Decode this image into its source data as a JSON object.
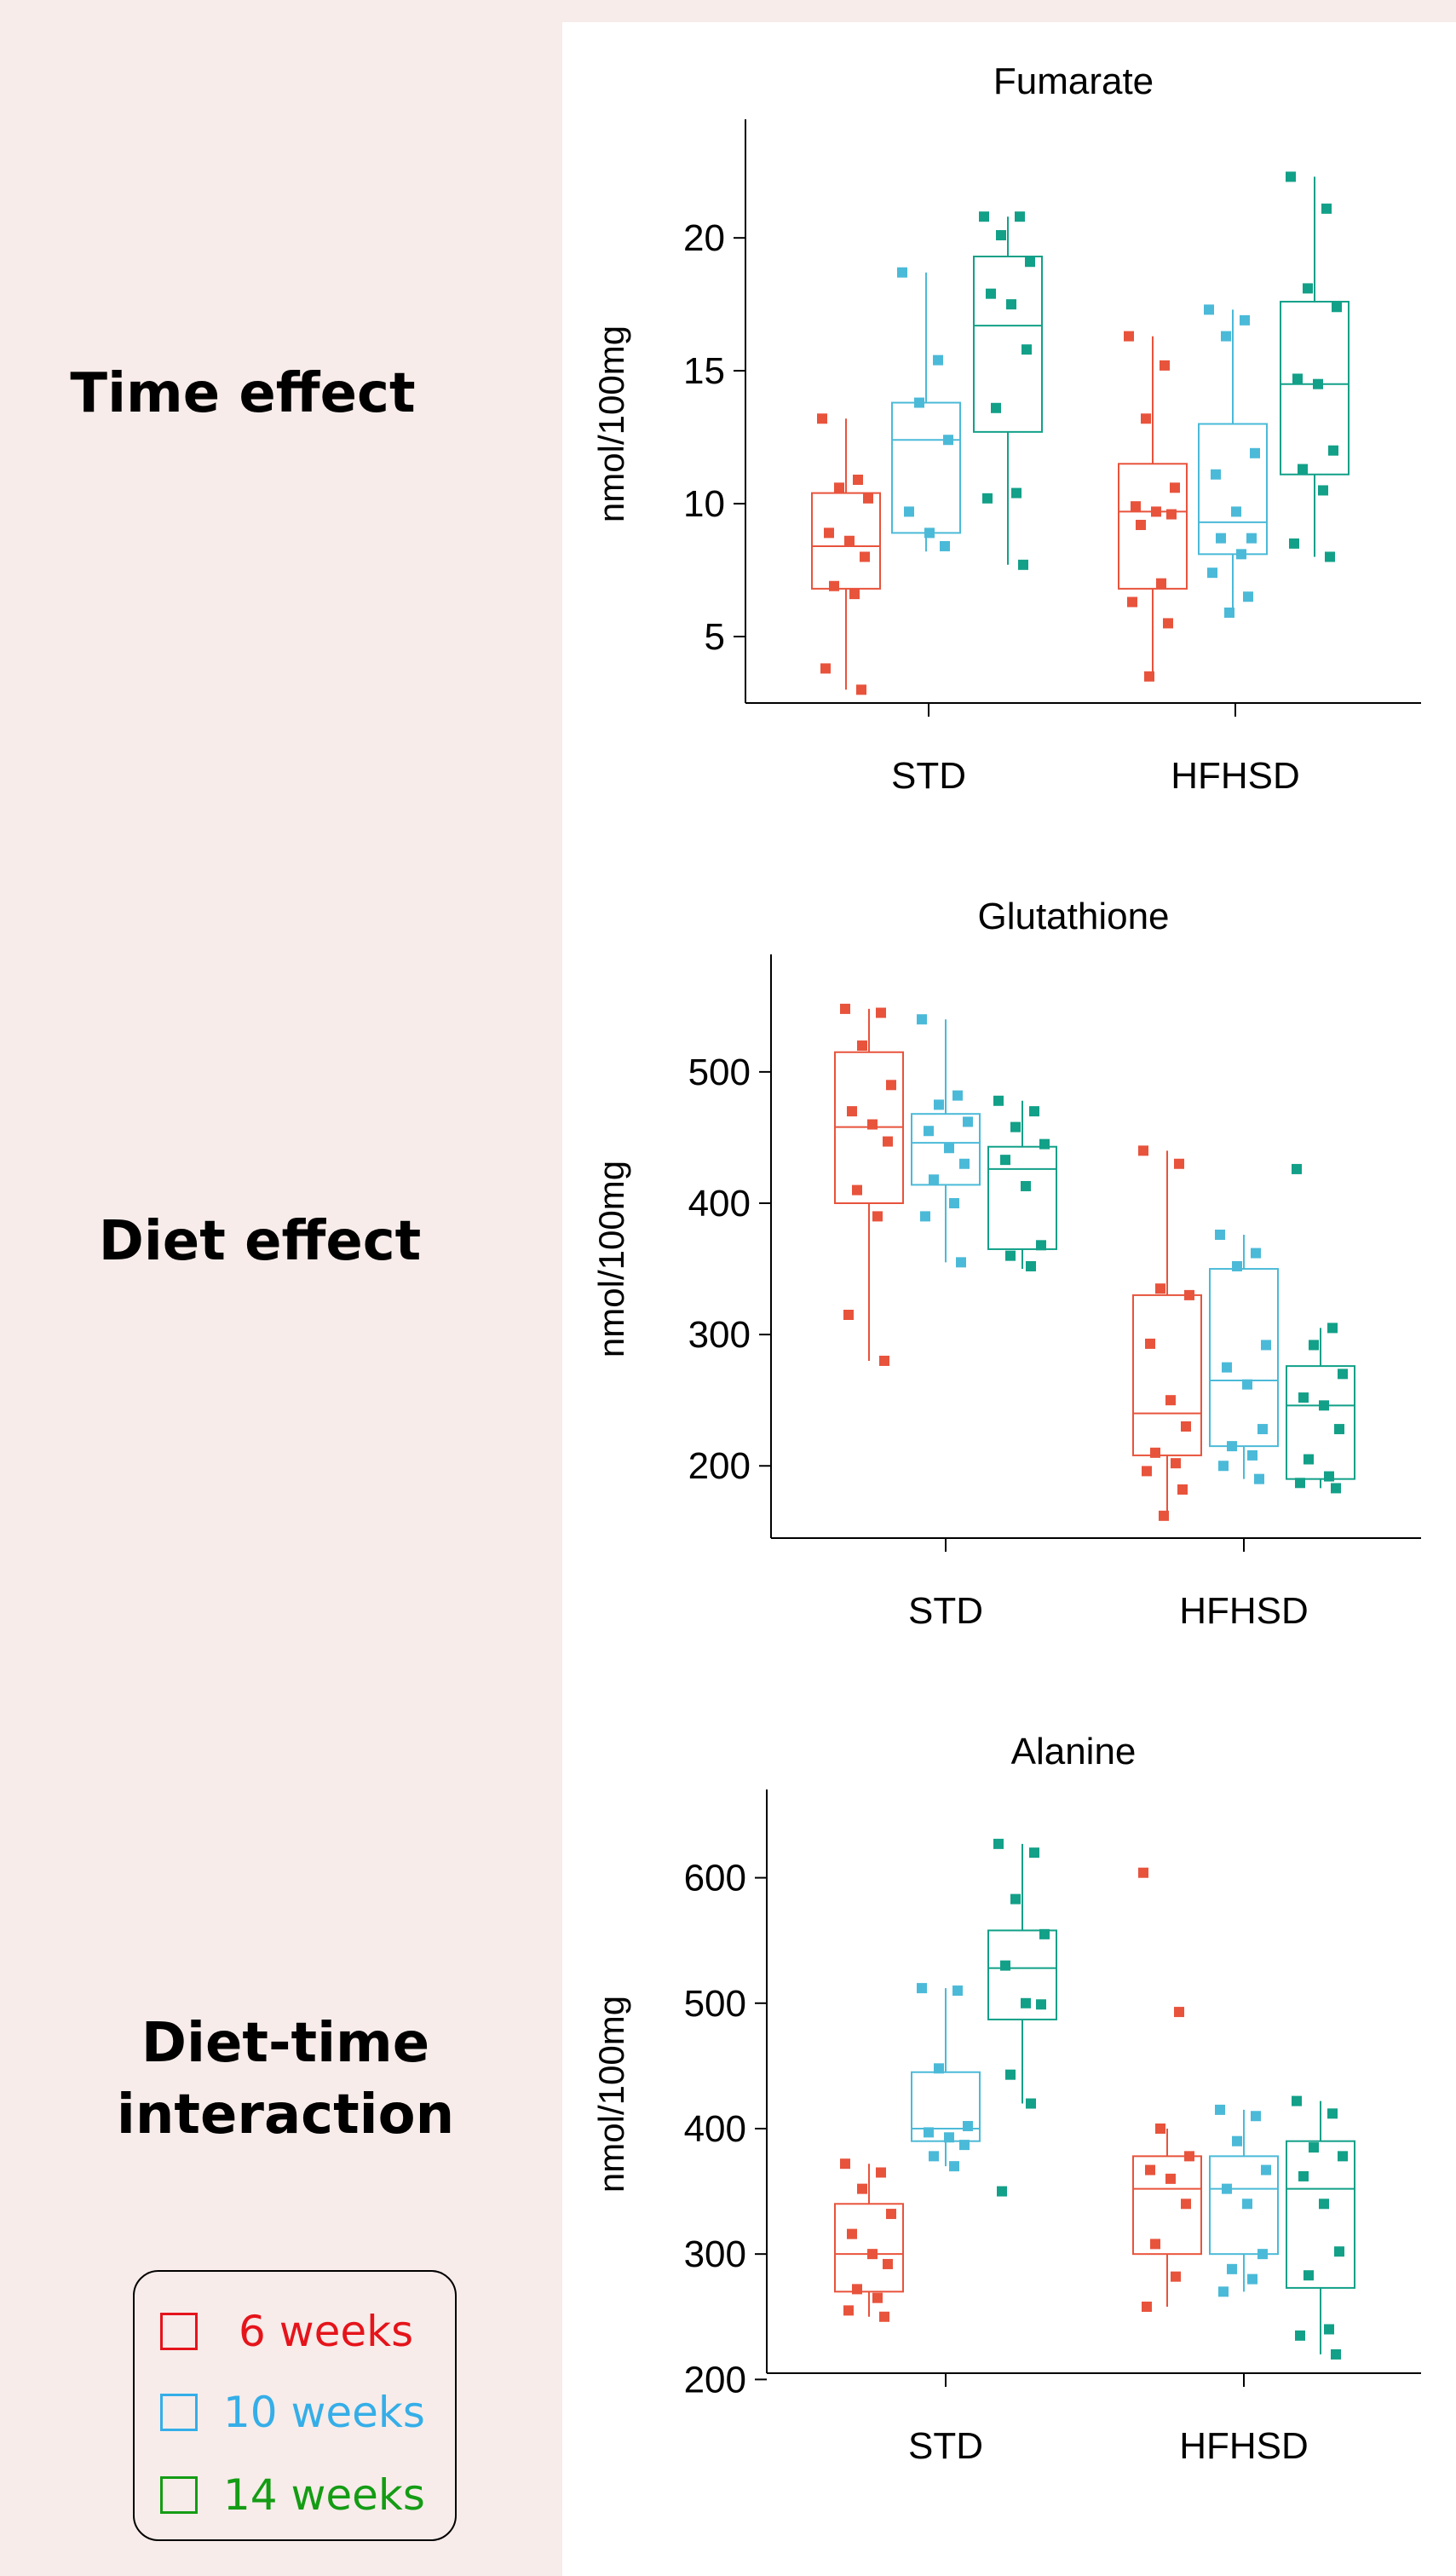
{
  "row_labels": {
    "time": "Time effect",
    "diet": "Diet effect",
    "interaction_line1": "Diet-time",
    "interaction_line2": "interaction"
  },
  "legend": [
    {
      "label": "6 weeks",
      "color": "#e8433a",
      "text_color": "#e5141b"
    },
    {
      "label": "10 weeks",
      "color": "#4db8d8",
      "text_color": "#35aee8"
    },
    {
      "label": "14 weeks",
      "color": "#16a084",
      "text_color": "#149c14"
    }
  ],
  "series_colors": [
    "#e8533c",
    "#4bbad8",
    "#12a088"
  ],
  "chart_data": [
    {
      "type": "box",
      "title": "Fumarate",
      "ylabel": "nmol/100mg",
      "ylim": [
        2.5,
        23.5
      ],
      "yticks": [
        5,
        10,
        15,
        20
      ],
      "categories": [
        "STD",
        "HFHSD"
      ],
      "groups": [
        {
          "category": "STD",
          "boxes": [
            {
              "q1": 6.8,
              "median": 8.4,
              "q3": 10.4,
              "min": 3.0,
              "max": 13.2,
              "points": [
                13.2,
                10.9,
                10.6,
                10.2,
                8.9,
                8.6,
                8.0,
                6.9,
                6.6,
                3.8,
                3.0
              ]
            },
            {
              "q1": 8.9,
              "median": 12.4,
              "q3": 13.8,
              "min": 8.2,
              "max": 18.7,
              "points": [
                18.7,
                15.4,
                13.8,
                12.4,
                9.7,
                8.9,
                8.4
              ]
            },
            {
              "q1": 12.7,
              "median": 16.7,
              "q3": 19.3,
              "min": 7.7,
              "max": 20.8,
              "points": [
                20.8,
                20.8,
                20.1,
                19.1,
                17.9,
                17.5,
                15.8,
                13.6,
                10.4,
                10.2,
                7.7
              ]
            }
          ]
        },
        {
          "category": "HFHSD",
          "boxes": [
            {
              "q1": 6.8,
              "median": 9.7,
              "q3": 11.5,
              "min": 3.5,
              "max": 16.3,
              "points": [
                16.3,
                15.2,
                13.2,
                10.6,
                9.9,
                9.7,
                9.6,
                9.2,
                7.0,
                6.3,
                5.5,
                3.5
              ]
            },
            {
              "q1": 8.1,
              "median": 9.3,
              "q3": 13.0,
              "min": 5.9,
              "max": 17.3,
              "points": [
                17.3,
                16.9,
                16.3,
                11.9,
                11.1,
                9.7,
                8.7,
                8.7,
                8.1,
                7.4,
                6.5,
                5.9
              ]
            },
            {
              "q1": 11.1,
              "median": 14.5,
              "q3": 17.6,
              "min": 8.0,
              "max": 22.3,
              "points": [
                22.3,
                21.1,
                18.1,
                17.4,
                14.7,
                14.5,
                12.0,
                11.3,
                10.5,
                8.5,
                8.0
              ]
            }
          ]
        }
      ]
    },
    {
      "type": "box",
      "title": "Glutathione",
      "ylabel": "nmol/100mg",
      "ylim": [
        145,
        570
      ],
      "yticks": [
        200,
        300,
        400,
        500
      ],
      "categories": [
        "STD",
        "HFHSD"
      ],
      "groups": [
        {
          "category": "STD",
          "boxes": [
            {
              "q1": 400,
              "median": 458,
              "q3": 515,
              "min": 280,
              "max": 548,
              "points": [
                548,
                545,
                520,
                490,
                470,
                460,
                447,
                410,
                390,
                315,
                280
              ]
            },
            {
              "q1": 414,
              "median": 446,
              "q3": 468,
              "min": 355,
              "max": 540,
              "points": [
                540,
                482,
                475,
                462,
                455,
                442,
                430,
                418,
                400,
                390,
                355
              ]
            },
            {
              "q1": 365,
              "median": 426,
              "q3": 443,
              "min": 350,
              "max": 478,
              "points": [
                478,
                470,
                458,
                445,
                433,
                413,
                368,
                360,
                352
              ]
            }
          ]
        },
        {
          "category": "HFHSD",
          "boxes": [
            {
              "q1": 208,
              "median": 240,
              "q3": 330,
              "min": 162,
              "max": 440,
              "points": [
                440,
                430,
                335,
                330,
                293,
                250,
                230,
                210,
                202,
                196,
                182,
                162
              ]
            },
            {
              "q1": 215,
              "median": 265,
              "q3": 350,
              "min": 190,
              "max": 376,
              "points": [
                376,
                362,
                352,
                292,
                275,
                262,
                228,
                215,
                208,
                200,
                190
              ]
            },
            {
              "q1": 190,
              "median": 246,
              "q3": 276,
              "min": 183,
              "max": 305,
              "points": [
                426,
                305,
                292,
                270,
                252,
                246,
                228,
                205,
                192,
                187,
                183
              ]
            }
          ]
        }
      ]
    },
    {
      "type": "box",
      "title": "Alanine",
      "ylabel": "nmol/100mg",
      "ylim": [
        205,
        650
      ],
      "yticks": [
        200,
        300,
        400,
        500,
        600
      ],
      "categories": [
        "STD",
        "HFHSD"
      ],
      "groups": [
        {
          "category": "STD",
          "boxes": [
            {
              "q1": 270,
              "median": 300,
              "q3": 340,
              "min": 250,
              "max": 372,
              "points": [
                372,
                365,
                352,
                332,
                316,
                300,
                292,
                272,
                265,
                255,
                250
              ]
            },
            {
              "q1": 390,
              "median": 400,
              "q3": 445,
              "min": 370,
              "max": 512,
              "points": [
                512,
                510,
                448,
                402,
                397,
                393,
                387,
                378,
                370
              ]
            },
            {
              "q1": 487,
              "median": 528,
              "q3": 558,
              "min": 420,
              "max": 627,
              "points": [
                627,
                620,
                583,
                555,
                530,
                500,
                499,
                443,
                420,
                350
              ]
            }
          ]
        },
        {
          "category": "HFHSD",
          "boxes": [
            {
              "q1": 300,
              "median": 352,
              "q3": 378,
              "min": 258,
              "max": 400,
              "points": [
                604,
                493,
                400,
                378,
                367,
                360,
                340,
                308,
                282,
                258
              ]
            },
            {
              "q1": 300,
              "median": 352,
              "q3": 378,
              "min": 270,
              "max": 415,
              "points": [
                415,
                410,
                390,
                367,
                352,
                340,
                300,
                288,
                280,
                270
              ]
            },
            {
              "q1": 273,
              "median": 352,
              "q3": 390,
              "min": 220,
              "max": 422,
              "points": [
                422,
                412,
                385,
                378,
                362,
                340,
                302,
                283,
                240,
                235,
                220
              ]
            }
          ]
        }
      ]
    }
  ]
}
